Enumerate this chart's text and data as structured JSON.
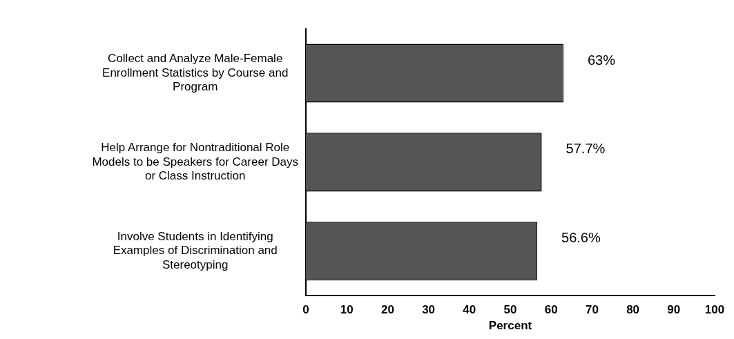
{
  "chart_data": {
    "type": "bar",
    "orientation": "horizontal",
    "categories": [
      "Collect and Analyze Male-Female Enrollment Statistics by Course and Program",
      "Help Arrange for Nontraditional Role Models to be Speakers for Career Days or Class Instruction",
      "Involve Students in Identifying Examples of Discrimination and Stereotyping"
    ],
    "values": [
      63,
      57.7,
      56.6
    ],
    "value_labels": [
      "63%",
      "57.7%",
      "56.6%"
    ],
    "color": "#555555",
    "xlim": [
      0,
      100
    ],
    "xticks": [
      0,
      10,
      20,
      30,
      40,
      50,
      60,
      70,
      80,
      90,
      100
    ],
    "xlabel": "Percent",
    "grid": false,
    "legend": false
  }
}
